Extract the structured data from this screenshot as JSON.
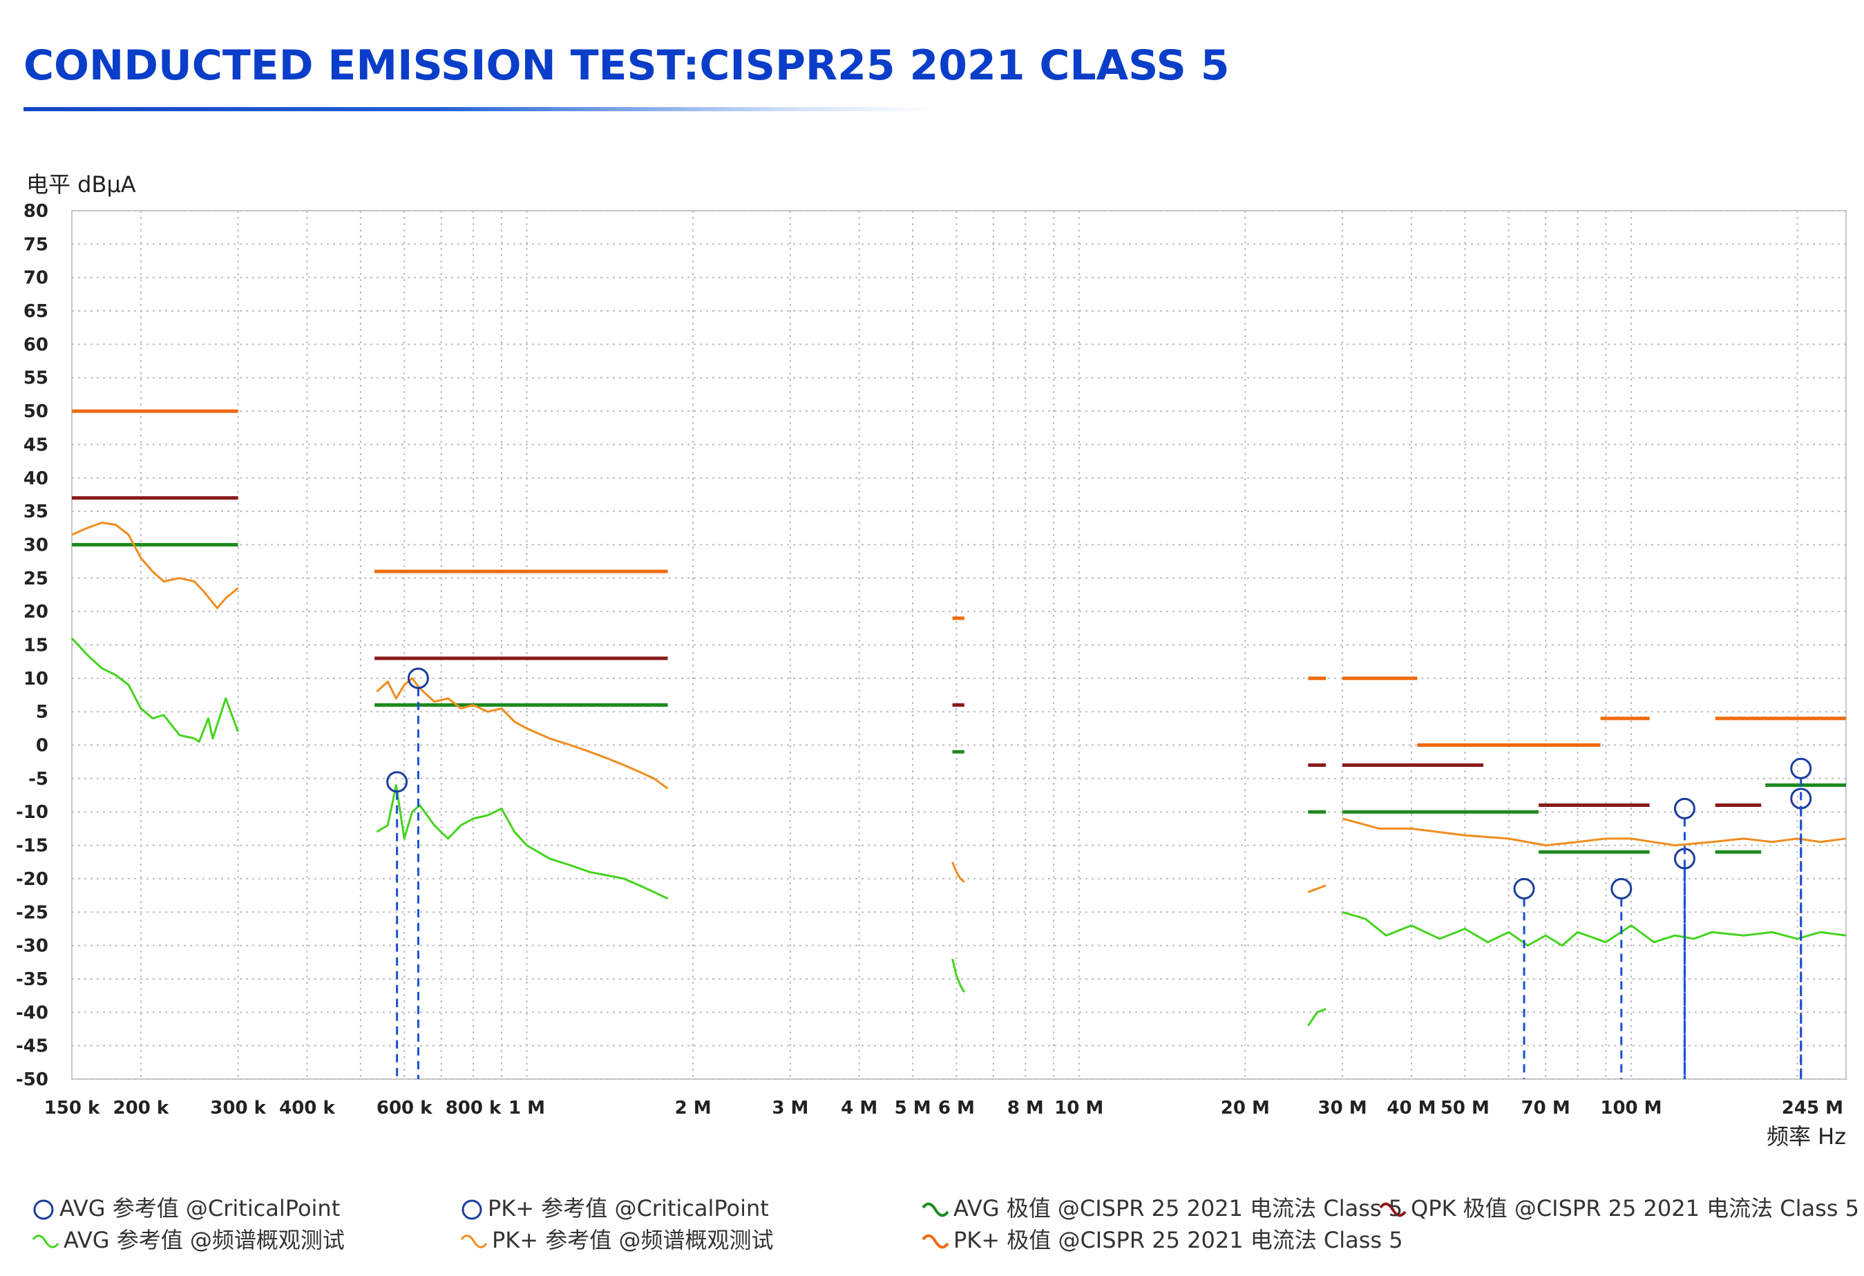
{
  "title": "CONDUCTED EMISSION TEST:CISPR25 2021 CLASS 5",
  "chart_data": {
    "type": "line",
    "ylabel": "电平 dBµA",
    "xlabel": "频率 Hz",
    "x_scale": "log",
    "xlim_hz": [
      150000,
      245000000
    ],
    "ylim": [
      -50,
      80
    ],
    "grid": true,
    "y_ticks": [
      80,
      75,
      70,
      65,
      60,
      55,
      50,
      45,
      40,
      35,
      30,
      25,
      20,
      15,
      10,
      5,
      0,
      -5,
      -10,
      -15,
      -20,
      -25,
      -30,
      -35,
      -40,
      -45,
      -50
    ],
    "x_ticks": [
      {
        "hz": 150000,
        "label": "150 k"
      },
      {
        "hz": 200000,
        "label": "200 k"
      },
      {
        "hz": 300000,
        "label": "300 k"
      },
      {
        "hz": 400000,
        "label": "400 k"
      },
      {
        "hz": 600000,
        "label": "600 k"
      },
      {
        "hz": 800000,
        "label": "800 k"
      },
      {
        "hz": 1000000,
        "label": "1 M"
      },
      {
        "hz": 2000000,
        "label": "2 M"
      },
      {
        "hz": 3000000,
        "label": "3 M"
      },
      {
        "hz": 4000000,
        "label": "4 M"
      },
      {
        "hz": 5000000,
        "label": "5 M"
      },
      {
        "hz": 6000000,
        "label": "6 M"
      },
      {
        "hz": 8000000,
        "label": "8 M"
      },
      {
        "hz": 10000000,
        "label": "10 M"
      },
      {
        "hz": 20000000,
        "label": "20 M"
      },
      {
        "hz": 30000000,
        "label": "30 M"
      },
      {
        "hz": 40000000,
        "label": "40 M"
      },
      {
        "hz": 50000000,
        "label": "50 M"
      },
      {
        "hz": 70000000,
        "label": "70 M"
      },
      {
        "hz": 100000000,
        "label": "100 M"
      },
      {
        "hz": 245000000,
        "label": "245 M"
      }
    ],
    "limits": {
      "pk": [
        {
          "f1": 150000,
          "f2": 300000,
          "v": 50
        },
        {
          "f1": 530000,
          "f2": 1800000,
          "v": 26
        },
        {
          "f1": 5900000,
          "f2": 6200000,
          "v": 19
        },
        {
          "f1": 26000000,
          "f2": 28000000,
          "v": 10
        },
        {
          "f1": 30000000,
          "f2": 41000000,
          "v": 10
        },
        {
          "f1": 41000000,
          "f2": 88000000,
          "v": 0
        },
        {
          "f1": 88000000,
          "f2": 108000000,
          "v": 4
        },
        {
          "f1": 142000000,
          "f2": 245000000,
          "v": 4
        }
      ],
      "qpk": [
        {
          "f1": 150000,
          "f2": 300000,
          "v": 37
        },
        {
          "f1": 530000,
          "f2": 1800000,
          "v": 13
        },
        {
          "f1": 5900000,
          "f2": 6200000,
          "v": 6
        },
        {
          "f1": 26000000,
          "f2": 28000000,
          "v": -3
        },
        {
          "f1": 30000000,
          "f2": 54000000,
          "v": -3
        },
        {
          "f1": 68000000,
          "f2": 108000000,
          "v": -9
        },
        {
          "f1": 142000000,
          "f2": 172000000,
          "v": -9
        }
      ],
      "avg": [
        {
          "f1": 150000,
          "f2": 300000,
          "v": 30
        },
        {
          "f1": 530000,
          "f2": 1800000,
          "v": 6
        },
        {
          "f1": 5900000,
          "f2": 6200000,
          "v": -1
        },
        {
          "f1": 26000000,
          "f2": 28000000,
          "v": -10
        },
        {
          "f1": 30000000,
          "f2": 68000000,
          "v": -10
        },
        {
          "f1": 68000000,
          "f2": 108000000,
          "v": -16
        },
        {
          "f1": 142000000,
          "f2": 172000000,
          "v": -16
        },
        {
          "f1": 175000000,
          "f2": 245000000,
          "v": -6
        }
      ]
    },
    "series": {
      "pk_measured": [
        [
          [
            150000,
            31.5
          ],
          [
            160000,
            32.5
          ],
          [
            170000,
            33.3
          ],
          [
            180000,
            33.0
          ],
          [
            190000,
            31.5
          ],
          [
            200000,
            28.0
          ],
          [
            210000,
            26.0
          ],
          [
            220000,
            24.5
          ],
          [
            235000,
            25.0
          ],
          [
            250000,
            24.5
          ],
          [
            260000,
            23.0
          ],
          [
            275000,
            20.5
          ],
          [
            285000,
            22.0
          ],
          [
            300000,
            23.5
          ]
        ],
        [
          [
            535000,
            8.0
          ],
          [
            560000,
            9.5
          ],
          [
            580000,
            7.0
          ],
          [
            600000,
            9.0
          ],
          [
            620000,
            10.0
          ],
          [
            640000,
            8.5
          ],
          [
            680000,
            6.5
          ],
          [
            720000,
            7.0
          ],
          [
            760000,
            5.5
          ],
          [
            800000,
            6.0
          ],
          [
            850000,
            5.0
          ],
          [
            900000,
            5.5
          ],
          [
            950000,
            3.5
          ],
          [
            1000000,
            2.5
          ],
          [
            1100000,
            1.0
          ],
          [
            1200000,
            0.0
          ],
          [
            1300000,
            -1.0
          ],
          [
            1400000,
            -2.0
          ],
          [
            1500000,
            -3.0
          ],
          [
            1600000,
            -4.0
          ],
          [
            1700000,
            -5.0
          ],
          [
            1800000,
            -6.5
          ]
        ],
        [
          [
            5900000,
            -17.5
          ],
          [
            6000000,
            -19.0
          ],
          [
            6100000,
            -20.0
          ],
          [
            6200000,
            -20.5
          ]
        ],
        [
          [
            26000000,
            -22.0
          ],
          [
            27000000,
            -21.5
          ],
          [
            28000000,
            -21.0
          ]
        ],
        [
          [
            30000000,
            -11.0
          ],
          [
            35000000,
            -12.5
          ],
          [
            40000000,
            -12.5
          ],
          [
            50000000,
            -13.5
          ],
          [
            60000000,
            -14.0
          ],
          [
            70000000,
            -15.0
          ],
          [
            80000000,
            -14.5
          ],
          [
            90000000,
            -14.0
          ],
          [
            100000000,
            -14.0
          ],
          [
            120000000,
            -15.0
          ],
          [
            140000000,
            -14.5
          ],
          [
            160000000,
            -14.0
          ],
          [
            180000000,
            -14.5
          ],
          [
            200000000,
            -14.0
          ],
          [
            220000000,
            -14.5
          ],
          [
            245000000,
            -14.0
          ]
        ]
      ],
      "avg_measured": [
        [
          [
            150000,
            16.0
          ],
          [
            160000,
            13.5
          ],
          [
            170000,
            11.5
          ],
          [
            180000,
            10.5
          ],
          [
            190000,
            9.0
          ],
          [
            200000,
            5.5
          ],
          [
            210000,
            4.0
          ],
          [
            220000,
            4.5
          ],
          [
            235000,
            1.5
          ],
          [
            250000,
            1.0
          ],
          [
            255000,
            0.5
          ],
          [
            265000,
            4.0
          ],
          [
            270000,
            1.0
          ],
          [
            285000,
            7.0
          ],
          [
            300000,
            2.0
          ]
        ],
        [
          [
            535000,
            -13.0
          ],
          [
            560000,
            -12.0
          ],
          [
            580000,
            -6.0
          ],
          [
            600000,
            -14.0
          ],
          [
            620000,
            -10.0
          ],
          [
            640000,
            -9.0
          ],
          [
            680000,
            -12.0
          ],
          [
            720000,
            -14.0
          ],
          [
            760000,
            -12.0
          ],
          [
            800000,
            -11.0
          ],
          [
            850000,
            -10.5
          ],
          [
            900000,
            -9.5
          ],
          [
            950000,
            -13.0
          ],
          [
            1000000,
            -15.0
          ],
          [
            1100000,
            -17.0
          ],
          [
            1200000,
            -18.0
          ],
          [
            1300000,
            -19.0
          ],
          [
            1400000,
            -19.5
          ],
          [
            1500000,
            -20.0
          ],
          [
            1600000,
            -21.0
          ],
          [
            1700000,
            -22.0
          ],
          [
            1800000,
            -23.0
          ]
        ],
        [
          [
            5900000,
            -32.0
          ],
          [
            6000000,
            -34.5
          ],
          [
            6100000,
            -36.0
          ],
          [
            6200000,
            -37.0
          ]
        ],
        [
          [
            26000000,
            -42.0
          ],
          [
            27000000,
            -40.0
          ],
          [
            28000000,
            -39.5
          ]
        ],
        [
          [
            30000000,
            -25.0
          ],
          [
            33000000,
            -26.0
          ],
          [
            36000000,
            -28.5
          ],
          [
            40000000,
            -27.0
          ],
          [
            45000000,
            -29.0
          ],
          [
            50000000,
            -27.5
          ],
          [
            55000000,
            -29.5
          ],
          [
            60000000,
            -28.0
          ],
          [
            65000000,
            -30.0
          ],
          [
            70000000,
            -28.5
          ],
          [
            75000000,
            -30.0
          ],
          [
            80000000,
            -28.0
          ],
          [
            90000000,
            -29.5
          ],
          [
            100000000,
            -27.0
          ],
          [
            110000000,
            -29.5
          ],
          [
            120000000,
            -28.5
          ],
          [
            130000000,
            -29.0
          ],
          [
            140000000,
            -28.0
          ],
          [
            160000000,
            -28.5
          ],
          [
            180000000,
            -28.0
          ],
          [
            200000000,
            -29.0
          ],
          [
            220000000,
            -28.0
          ],
          [
            245000000,
            -28.5
          ]
        ]
      ]
    },
    "critical_points": {
      "avg": [
        [
          582000,
          -5.5
        ],
        [
          64000000,
          -21.5
        ],
        [
          96000000,
          -21.5
        ],
        [
          125000000,
          -17.0
        ],
        [
          203000000,
          -8.0
        ]
      ],
      "pk": [
        [
          636000,
          10.0
        ],
        [
          125000000,
          -9.5
        ],
        [
          203000000,
          -3.5
        ]
      ]
    },
    "legend": [
      "AVG 参考值 @CriticalPoint",
      "PK+ 参考值 @CriticalPoint",
      "AVG 极值 @CISPR 25 2021 电流法 Class 5",
      "QPK 极值 @CISPR 25 2021 电流法 Class 5",
      "AVG 参考值 @频谱概观测试",
      "PK+ 参考值 @频谱概观测试",
      "PK+ 极值 @CISPR 25 2021 电流法 Class 5"
    ],
    "colors": {
      "pk_limit": "#ee6a10",
      "qpk_limit": "#8b1a1a",
      "avg_limit": "#1e8a1e",
      "pk_measured": "#f08c1e",
      "avg_measured": "#44d41e",
      "critical_marker": "#1a3e9c",
      "avg_marker_line": "#1a4fd0",
      "pk_marker_line": "#1a4fd0"
    }
  }
}
